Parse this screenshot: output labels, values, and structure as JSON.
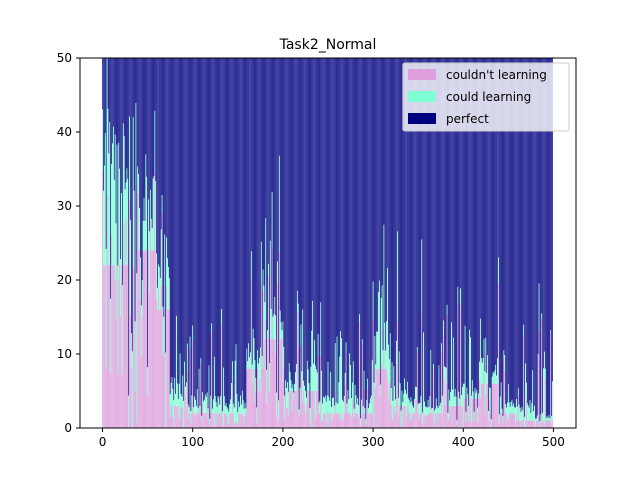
{
  "chart_data": {
    "type": "bar",
    "stacked": true,
    "title": "Task2_Normal",
    "xlabel": "",
    "ylabel": "",
    "xlim": [
      -25,
      525
    ],
    "ylim": [
      0,
      50
    ],
    "x_ticks": [
      0,
      100,
      200,
      300,
      400,
      500
    ],
    "y_ticks": [
      0,
      10,
      20,
      30,
      40,
      50
    ],
    "n_bars": 500,
    "legend_position": "top-right",
    "grid": false,
    "series": [
      {
        "name": "couldn't learning",
        "color": "#dda0dd"
      },
      {
        "name": "could learning",
        "color": "#7fffd4"
      },
      {
        "name": "perfect",
        "color": "#000080"
      }
    ],
    "segments": [
      {
        "start": 0,
        "end": 20,
        "couldnt": 22,
        "could": 16
      },
      {
        "start": 20,
        "end": 40,
        "couldnt": 22,
        "could": 11
      },
      {
        "start": 40,
        "end": 60,
        "couldnt": 24,
        "could": 8
      },
      {
        "start": 60,
        "end": 75,
        "couldnt": 16,
        "could": 6
      },
      {
        "start": 75,
        "end": 95,
        "couldnt": 3,
        "could": 3
      },
      {
        "start": 95,
        "end": 130,
        "couldnt": 2,
        "could": 2
      },
      {
        "start": 130,
        "end": 160,
        "couldnt": 2,
        "could": 2
      },
      {
        "start": 160,
        "end": 180,
        "couldnt": 8,
        "could": 3
      },
      {
        "start": 180,
        "end": 200,
        "couldnt": 12,
        "could": 4
      },
      {
        "start": 200,
        "end": 240,
        "couldnt": 5,
        "could": 3
      },
      {
        "start": 240,
        "end": 280,
        "couldnt": 2,
        "could": 2
      },
      {
        "start": 280,
        "end": 300,
        "couldnt": 2,
        "could": 2
      },
      {
        "start": 300,
        "end": 320,
        "couldnt": 8,
        "could": 5
      },
      {
        "start": 320,
        "end": 340,
        "couldnt": 3,
        "could": 3
      },
      {
        "start": 340,
        "end": 360,
        "couldnt": 2,
        "could": 2
      },
      {
        "start": 360,
        "end": 380,
        "couldnt": 2,
        "could": 2
      },
      {
        "start": 380,
        "end": 400,
        "couldnt": 3,
        "could": 2
      },
      {
        "start": 400,
        "end": 420,
        "couldnt": 4,
        "could": 2
      },
      {
        "start": 420,
        "end": 440,
        "couldnt": 6,
        "could": 3
      },
      {
        "start": 440,
        "end": 460,
        "couldnt": 2,
        "could": 2
      },
      {
        "start": 460,
        "end": 480,
        "couldnt": 1,
        "could": 2
      },
      {
        "start": 480,
        "end": 500,
        "couldnt": 1,
        "could": 1
      }
    ]
  }
}
